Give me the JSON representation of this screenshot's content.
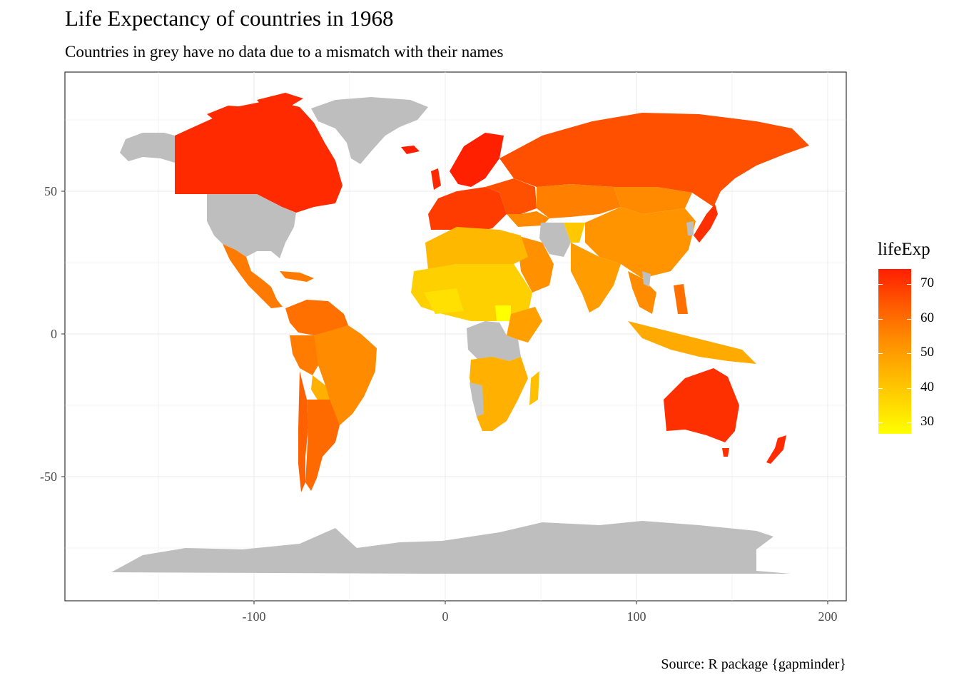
{
  "title": "Life Expectancy of countries in 1968",
  "subtitle": "Countries in grey have no data due to a mismatch with their names",
  "caption": "Source: R package {gapminder}",
  "chart_data": {
    "type": "heatmap",
    "map_kind": "choropleth world map",
    "x_ticks": [
      "-100",
      "0",
      "100",
      "200"
    ],
    "y_ticks": [
      "50",
      "0",
      "-50"
    ],
    "xlim": [
      -196,
      208
    ],
    "ylim": [
      -92,
      92
    ],
    "legend": {
      "title": "lifeExp",
      "ticks": [
        "70",
        "60",
        "50",
        "40",
        "30"
      ],
      "range": [
        26,
        75
      ],
      "low_color": "#ffff00",
      "high_color": "#ff1e00",
      "missing_color": "#bebebe"
    },
    "grid": true,
    "legend_position": "right"
  }
}
